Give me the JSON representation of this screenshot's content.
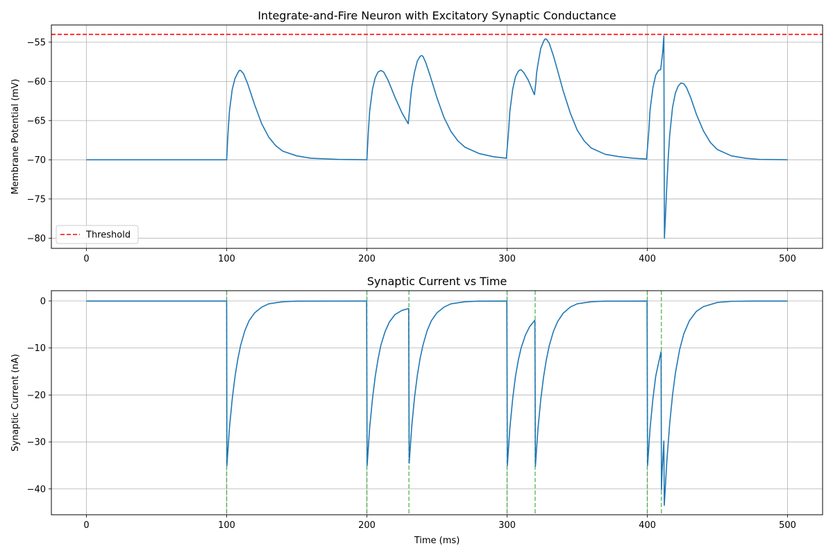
{
  "chart_data": [
    {
      "type": "line",
      "title": "Integrate-and-Fire Neuron with Excitatory Synaptic Conductance",
      "xlabel": "",
      "ylabel": "Membrane Potential (mV)",
      "xlim": [
        -25,
        525
      ],
      "ylim": [
        -81.3,
        -52.8
      ],
      "xticks": [
        0,
        100,
        200,
        300,
        400,
        500
      ],
      "yticks": [
        -80,
        -75,
        -70,
        -65,
        -60,
        -55
      ],
      "grid": true,
      "legend": {
        "placement": "lower-left",
        "entries": [
          "Threshold"
        ]
      },
      "threshold": {
        "label": "Threshold",
        "value": -54,
        "color": "#ff0000",
        "style": "dashed"
      },
      "series": [
        {
          "color": "#1f77b4",
          "points": [
            [
              0,
              -70
            ],
            [
              100,
              -70
            ],
            [
              101,
              -66.5
            ],
            [
              102,
              -63.8
            ],
            [
              104,
              -61
            ],
            [
              106,
              -59.6
            ],
            [
              108,
              -58.9
            ],
            [
              109,
              -58.6
            ],
            [
              110,
              -58.6
            ],
            [
              112,
              -59.0
            ],
            [
              115,
              -60.3
            ],
            [
              120,
              -63.0
            ],
            [
              125,
              -65.4
            ],
            [
              130,
              -67.1
            ],
            [
              135,
              -68.2
            ],
            [
              140,
              -68.9
            ],
            [
              150,
              -69.5
            ],
            [
              160,
              -69.8
            ],
            [
              180,
              -69.95
            ],
            [
              200,
              -70
            ],
            [
              201,
              -66.6
            ],
            [
              202,
              -63.8
            ],
            [
              204,
              -61
            ],
            [
              206,
              -59.5
            ],
            [
              208,
              -58.8
            ],
            [
              210,
              -58.6
            ],
            [
              212,
              -58.8
            ],
            [
              215,
              -59.8
            ],
            [
              220,
              -62
            ],
            [
              225,
              -64
            ],
            [
              229.5,
              -65.4
            ],
            [
              230.5,
              -63.5
            ],
            [
              231,
              -62.4
            ],
            [
              232,
              -60.8
            ],
            [
              234,
              -58.8
            ],
            [
              236,
              -57.4
            ],
            [
              238,
              -56.8
            ],
            [
              239,
              -56.7
            ],
            [
              240,
              -56.8
            ],
            [
              242,
              -57.6
            ],
            [
              245,
              -59.2
            ],
            [
              250,
              -62.1
            ],
            [
              255,
              -64.6
            ],
            [
              260,
              -66.4
            ],
            [
              265,
              -67.6
            ],
            [
              270,
              -68.4
            ],
            [
              280,
              -69.2
            ],
            [
              290,
              -69.6
            ],
            [
              299.5,
              -69.8
            ],
            [
              301,
              -66.5
            ],
            [
              302,
              -63.8
            ],
            [
              304,
              -61
            ],
            [
              306,
              -59.4
            ],
            [
              308,
              -58.7
            ],
            [
              309,
              -58.55
            ],
            [
              310,
              -58.5
            ],
            [
              312,
              -58.9
            ],
            [
              315,
              -59.8
            ],
            [
              319.5,
              -61.7
            ],
            [
              320.5,
              -60.2
            ],
            [
              321,
              -59
            ],
            [
              322,
              -57.8
            ],
            [
              324,
              -55.8
            ],
            [
              326,
              -54.9
            ],
            [
              327,
              -54.6
            ],
            [
              328,
              -54.6
            ],
            [
              330,
              -55.1
            ],
            [
              333,
              -56.7
            ],
            [
              336,
              -58.6
            ],
            [
              340,
              -61.2
            ],
            [
              345,
              -64
            ],
            [
              350,
              -66.2
            ],
            [
              355,
              -67.6
            ],
            [
              360,
              -68.5
            ],
            [
              370,
              -69.3
            ],
            [
              380,
              -69.6
            ],
            [
              390,
              -69.8
            ],
            [
              399.5,
              -69.9
            ],
            [
              401,
              -66.5
            ],
            [
              402,
              -63.6
            ],
            [
              404,
              -60.8
            ],
            [
              406,
              -59.2
            ],
            [
              408,
              -58.6
            ],
            [
              409.5,
              -58.5
            ],
            [
              410.3,
              -57.3
            ],
            [
              411,
              -56.2
            ],
            [
              411.8,
              -54.2
            ],
            [
              412.2,
              -80
            ],
            [
              413,
              -77
            ],
            [
              414,
              -73
            ],
            [
              415,
              -69.5
            ],
            [
              416,
              -66.8
            ],
            [
              418,
              -63.3
            ],
            [
              420,
              -61.5
            ],
            [
              422,
              -60.6
            ],
            [
              424,
              -60.2
            ],
            [
              426,
              -60.3
            ],
            [
              428,
              -60.8
            ],
            [
              431,
              -62.1
            ],
            [
              435,
              -64.2
            ],
            [
              440,
              -66.3
            ],
            [
              445,
              -67.8
            ],
            [
              450,
              -68.7
            ],
            [
              460,
              -69.5
            ],
            [
              470,
              -69.8
            ],
            [
              480,
              -69.95
            ],
            [
              500,
              -70
            ]
          ]
        }
      ]
    },
    {
      "type": "line",
      "title": "Synaptic Current vs Time",
      "xlabel": "Time (ms)",
      "ylabel": "Synaptic Current (nA)",
      "xlim": [
        -25,
        525
      ],
      "ylim": [
        -45.5,
        2.2
      ],
      "xticks": [
        0,
        100,
        200,
        300,
        400,
        500
      ],
      "yticks": [
        -40,
        -30,
        -20,
        -10,
        0
      ],
      "grid": true,
      "event_markers": {
        "x": [
          100,
          200,
          230,
          300,
          320,
          400,
          410
        ],
        "color": "#2ca02c",
        "style": "dashed"
      },
      "series": [
        {
          "color": "#1f77b4",
          "points": [
            [
              0,
              0
            ],
            [
              100,
              0
            ],
            [
              100.2,
              -35
            ],
            [
              102,
              -27
            ],
            [
              104,
              -20.8
            ],
            [
              106,
              -16
            ],
            [
              108,
              -12.3
            ],
            [
              110,
              -9.4
            ],
            [
              113,
              -6.3
            ],
            [
              116,
              -4.2
            ],
            [
              120,
              -2.5
            ],
            [
              125,
              -1.3
            ],
            [
              130,
              -0.6
            ],
            [
              140,
              -0.15
            ],
            [
              150,
              -0.03
            ],
            [
              199.8,
              0
            ],
            [
              200.2,
              -35
            ],
            [
              202,
              -27
            ],
            [
              204,
              -20.8
            ],
            [
              206,
              -16
            ],
            [
              208,
              -12.3
            ],
            [
              210,
              -9.4
            ],
            [
              213,
              -6.5
            ],
            [
              216,
              -4.5
            ],
            [
              220,
              -2.9
            ],
            [
              225,
              -2
            ],
            [
              229.8,
              -1.6
            ],
            [
              230.2,
              -34.5
            ],
            [
              232,
              -26.7
            ],
            [
              234,
              -20.5
            ],
            [
              236,
              -15.8
            ],
            [
              238,
              -12.2
            ],
            [
              240,
              -9.4
            ],
            [
              243,
              -6.3
            ],
            [
              246,
              -4.2
            ],
            [
              250,
              -2.5
            ],
            [
              255,
              -1.3
            ],
            [
              260,
              -0.6
            ],
            [
              270,
              -0.15
            ],
            [
              280,
              -0.03
            ],
            [
              299.8,
              0
            ],
            [
              300.2,
              -35
            ],
            [
              302,
              -27
            ],
            [
              304,
              -20.8
            ],
            [
              306,
              -16
            ],
            [
              308,
              -12.6
            ],
            [
              310,
              -10
            ],
            [
              313,
              -7.3
            ],
            [
              316,
              -5.5
            ],
            [
              319.8,
              -4.1
            ],
            [
              320.2,
              -35.2
            ],
            [
              322,
              -27.3
            ],
            [
              324,
              -21
            ],
            [
              326,
              -16.2
            ],
            [
              328,
              -12.5
            ],
            [
              330,
              -9.6
            ],
            [
              333,
              -6.5
            ],
            [
              336,
              -4.4
            ],
            [
              340,
              -2.6
            ],
            [
              345,
              -1.3
            ],
            [
              350,
              -0.6
            ],
            [
              360,
              -0.15
            ],
            [
              370,
              -0.03
            ],
            [
              399.8,
              0
            ],
            [
              400.2,
              -35
            ],
            [
              402,
              -27
            ],
            [
              404,
              -20.8
            ],
            [
              406,
              -16
            ],
            [
              408,
              -13.2
            ],
            [
              409.8,
              -10.8
            ],
            [
              410.1,
              -40.2
            ],
            [
              410.5,
              -36.5
            ],
            [
              411,
              -34
            ],
            [
              411.5,
              -31.5
            ],
            [
              411.8,
              -29.8
            ],
            [
              412.1,
              -43.5
            ],
            [
              414,
              -33.8
            ],
            [
              416,
              -26
            ],
            [
              418,
              -20
            ],
            [
              420,
              -15.4
            ],
            [
              423,
              -10.4
            ],
            [
              426,
              -7
            ],
            [
              430,
              -4.2
            ],
            [
              435,
              -2.2
            ],
            [
              440,
              -1.2
            ],
            [
              450,
              -0.3
            ],
            [
              460,
              -0.07
            ],
            [
              475,
              -0.01
            ],
            [
              500,
              0
            ]
          ]
        }
      ]
    }
  ]
}
